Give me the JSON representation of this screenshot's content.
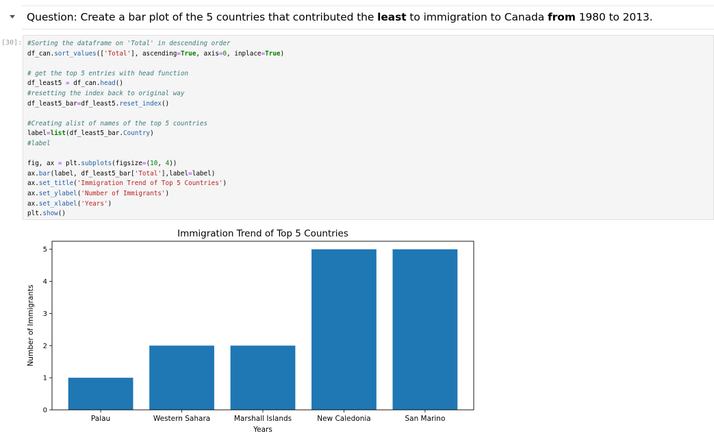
{
  "markdown": {
    "parts": [
      {
        "text": "Question: Create a bar plot of the 5 countries that contributed the ",
        "bold": false
      },
      {
        "text": "least",
        "bold": true
      },
      {
        "text": " to immigration to Canada ",
        "bold": false
      },
      {
        "text": "from",
        "bold": true
      },
      {
        "text": " 1980 to 2013.",
        "bold": false
      }
    ]
  },
  "code_cell": {
    "prompt": "[30]:",
    "lines": [
      [
        {
          "t": "#Sorting the dataframe on 'Total' in descending order",
          "c": "cm"
        }
      ],
      [
        {
          "t": "df_can",
          "c": ""
        },
        {
          "t": ".",
          "c": ""
        },
        {
          "t": "sort_values",
          "c": "attr"
        },
        {
          "t": "([",
          "c": ""
        },
        {
          "t": "'Total'",
          "c": "str"
        },
        {
          "t": "], ascending",
          "c": ""
        },
        {
          "t": "=",
          "c": "op"
        },
        {
          "t": "True",
          "c": "kw"
        },
        {
          "t": ", axis",
          "c": ""
        },
        {
          "t": "=",
          "c": "op"
        },
        {
          "t": "0",
          "c": "num"
        },
        {
          "t": ", inplace",
          "c": ""
        },
        {
          "t": "=",
          "c": "op"
        },
        {
          "t": "True",
          "c": "kw"
        },
        {
          "t": ")",
          "c": ""
        }
      ],
      [],
      [
        {
          "t": "# get the top 5 entries with head function",
          "c": "cm"
        }
      ],
      [
        {
          "t": "df_least5 ",
          "c": ""
        },
        {
          "t": "=",
          "c": "op"
        },
        {
          "t": " df_can.",
          "c": ""
        },
        {
          "t": "head",
          "c": "attr"
        },
        {
          "t": "()",
          "c": ""
        }
      ],
      [
        {
          "t": "#resetting the index back to original way",
          "c": "cm"
        }
      ],
      [
        {
          "t": "df_least5_bar",
          "c": ""
        },
        {
          "t": "=",
          "c": "op"
        },
        {
          "t": "df_least5.",
          "c": ""
        },
        {
          "t": "reset_index",
          "c": "attr"
        },
        {
          "t": "()",
          "c": ""
        }
      ],
      [],
      [
        {
          "t": "#Creating alist of names of the top 5 countries",
          "c": "cm"
        }
      ],
      [
        {
          "t": "label",
          "c": ""
        },
        {
          "t": "=",
          "c": "op"
        },
        {
          "t": "list",
          "c": "kw"
        },
        {
          "t": "(df_least5_bar.",
          "c": ""
        },
        {
          "t": "Country",
          "c": "attr"
        },
        {
          "t": ")",
          "c": ""
        }
      ],
      [
        {
          "t": "#label",
          "c": "cm"
        }
      ],
      [],
      [
        {
          "t": "fig, ax ",
          "c": ""
        },
        {
          "t": "=",
          "c": "op"
        },
        {
          "t": " plt.",
          "c": ""
        },
        {
          "t": "subplots",
          "c": "attr"
        },
        {
          "t": "(figsize",
          "c": ""
        },
        {
          "t": "=",
          "c": "op"
        },
        {
          "t": "(",
          "c": ""
        },
        {
          "t": "10",
          "c": "num"
        },
        {
          "t": ", ",
          "c": ""
        },
        {
          "t": "4",
          "c": "num"
        },
        {
          "t": "))",
          "c": ""
        }
      ],
      [
        {
          "t": "ax.",
          "c": ""
        },
        {
          "t": "bar",
          "c": "attr"
        },
        {
          "t": "(label, df_least5_bar[",
          "c": ""
        },
        {
          "t": "'Total'",
          "c": "str"
        },
        {
          "t": "],label",
          "c": ""
        },
        {
          "t": "=",
          "c": "op"
        },
        {
          "t": "label)",
          "c": ""
        }
      ],
      [
        {
          "t": "ax.",
          "c": ""
        },
        {
          "t": "set_title",
          "c": "attr"
        },
        {
          "t": "(",
          "c": ""
        },
        {
          "t": "'Immigration Trend of Top 5 Countries'",
          "c": "str"
        },
        {
          "t": ")",
          "c": ""
        }
      ],
      [
        {
          "t": "ax.",
          "c": ""
        },
        {
          "t": "set_ylabel",
          "c": "attr"
        },
        {
          "t": "(",
          "c": ""
        },
        {
          "t": "'Number of Immigrants'",
          "c": "str"
        },
        {
          "t": ")",
          "c": ""
        }
      ],
      [
        {
          "t": "ax.",
          "c": ""
        },
        {
          "t": "set_xlabel",
          "c": "attr"
        },
        {
          "t": "(",
          "c": ""
        },
        {
          "t": "'Years'",
          "c": "str"
        },
        {
          "t": ")",
          "c": ""
        }
      ],
      [
        {
          "t": "plt.",
          "c": ""
        },
        {
          "t": "show",
          "c": "attr"
        },
        {
          "t": "()",
          "c": ""
        }
      ]
    ]
  },
  "chart_data": {
    "type": "bar",
    "title": "Immigration Trend of Top 5 Countries",
    "xlabel": "Years",
    "ylabel": "Number of Immigrants",
    "categories": [
      "Palau",
      "Western Sahara",
      "Marshall Islands",
      "New Caledonia",
      "San Marino"
    ],
    "values": [
      1,
      2,
      2,
      5,
      5
    ],
    "ylim": [
      0,
      5.25
    ],
    "yticks": [
      0,
      1,
      2,
      3,
      4,
      5
    ],
    "bar_color": "#1f77b4",
    "grid": false
  }
}
